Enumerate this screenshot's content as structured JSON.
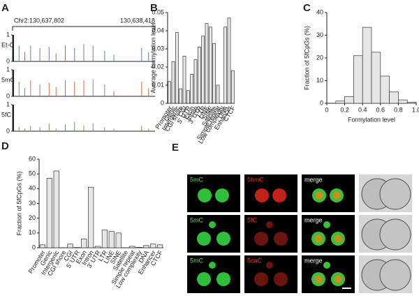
{
  "chart_data": [
    {
      "type": "track",
      "panel": "A",
      "coordinates_left": "Chr2:130,637,802",
      "coordinates_right": "130,638,418",
      "xlim": [
        130637802,
        130638418
      ],
      "ylim": [
        0,
        1
      ],
      "yticks": [
        0,
        1
      ],
      "series": [
        {
          "name": "Et-C",
          "color": "#5b80c0",
          "x": [
            130637805,
            130637830,
            130637855,
            130637880,
            130637920,
            130637960,
            130637990,
            130638030,
            130638070,
            130638110,
            130638150,
            130638200,
            130638240,
            130638360,
            130638390
          ],
          "values": [
            1,
            0.6,
            0.35,
            0.6,
            0.5,
            0.55,
            0.3,
            0.6,
            0.5,
            0.65,
            0.6,
            0.4,
            0.25,
            0.5,
            0.35
          ]
        },
        {
          "name": "5mC",
          "color": "#e2624c",
          "x": [
            130637805,
            130637830,
            130637855,
            130637880,
            130637920,
            130637960,
            130637990,
            130638030,
            130638070,
            130638110,
            130638150,
            130638200,
            130638240,
            130638360,
            130638390
          ],
          "values": [
            1,
            0.55,
            0.3,
            0.6,
            0.45,
            0.5,
            0.35,
            0.6,
            0.55,
            0.6,
            0.65,
            0.45,
            0.2,
            0.55,
            0.3
          ]
        },
        {
          "name": "5fC",
          "color": "#6b9a5b",
          "x": [
            130637805,
            130637830,
            130637855,
            130637880,
            130637920,
            130637960,
            130637990,
            130638030,
            130638070,
            130638110,
            130638150,
            130638200,
            130638240,
            130638360,
            130638390
          ],
          "values": [
            1,
            0.15,
            0.1,
            0.2,
            0.15,
            0.3,
            0.1,
            0.25,
            0.35,
            0.2,
            0.3,
            0.15,
            0.1,
            0.2,
            0.1
          ]
        }
      ]
    },
    {
      "type": "bar",
      "panel": "B",
      "ylabel": "Average formylation level",
      "categories": [
        "Promoter",
        "Genic",
        "Intergenic",
        "CGI shore",
        "CGI",
        "5' UTR",
        "Exon",
        "Intron",
        "3' UTR",
        "LTR",
        "LINE",
        "SINE",
        "Satellite",
        "Simple repeat",
        "Low complexity",
        "DNA",
        "Enhancer",
        "CTCF"
      ],
      "values": [
        0.012,
        0.023,
        0.039,
        0.008,
        0.026,
        0.007,
        0.016,
        0.024,
        0.031,
        0.037,
        0.044,
        0.042,
        0.033,
        0.01,
        0,
        0.042,
        0.047,
        0.018
      ],
      "color": "#e6e6e6",
      "ylim": [
        0,
        0.05
      ],
      "yticks": [
        0,
        0.01,
        0.02,
        0.03,
        0.04,
        0.05
      ]
    },
    {
      "type": "histogram",
      "panel": "C",
      "ylabel": "Fraction of 5fCpGs (%)",
      "xlabel": "Formylation level",
      "bins": [
        0,
        0.1,
        0.2,
        0.3,
        0.4,
        0.5,
        0.6,
        0.7,
        0.8,
        0.9,
        1
      ],
      "values": [
        0,
        1,
        3,
        21,
        33.5,
        22.5,
        12,
        5,
        1.5,
        0.5
      ],
      "color": "#e6e6e6",
      "xlim": [
        0,
        1
      ],
      "ylim": [
        0,
        40
      ],
      "xticks": [
        0,
        0.2,
        0.4,
        0.6,
        0.8,
        {
          "value": 1,
          "label": "1.0"
        }
      ],
      "yticks": [
        0,
        10,
        20,
        30,
        40
      ]
    },
    {
      "type": "bar",
      "panel": "D",
      "ylabel": "Fraction of 5fCpGs (%)",
      "categories": [
        "Promoter",
        "Genic",
        "Intergenic",
        "CGI shore",
        "CGI",
        "5' UTR",
        "Exon",
        "Intron",
        "3' UTR",
        "LTR",
        "LINE",
        "SINE",
        "Satellite",
        "Simple repeat",
        "Low complexity",
        "DNA",
        "Enhancer",
        "CTCF"
      ],
      "values": [
        2,
        47,
        52,
        0,
        2.5,
        0.2,
        6,
        41,
        1,
        12,
        11,
        10,
        0,
        1,
        0.3,
        1.5,
        2.5,
        2
      ],
      "color": "#e6e6e6",
      "ylim": [
        0,
        60
      ],
      "yticks": [
        0,
        10,
        20,
        30,
        40,
        50,
        60
      ]
    }
  ],
  "figure_e": {
    "panel": "E",
    "rows": [
      [
        "5mC",
        "5hmC",
        "merge"
      ],
      [
        "5mC",
        "5fC",
        "merge"
      ],
      [
        "5mC",
        "5caC",
        "merge"
      ]
    ]
  }
}
